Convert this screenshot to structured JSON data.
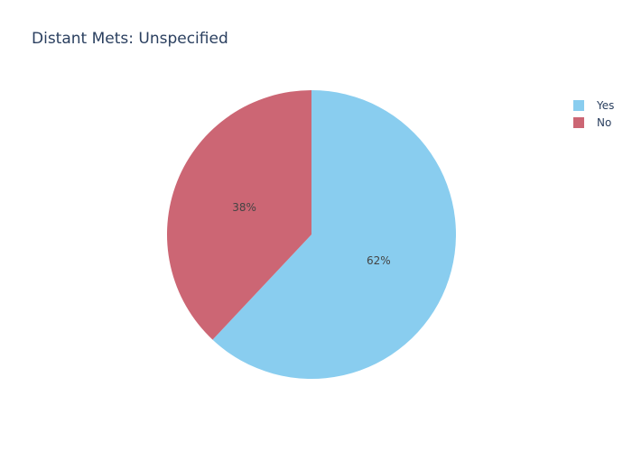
{
  "chart_data": {
    "type": "pie",
    "title": "Distant Mets: Unspecified",
    "slices": [
      {
        "label": "Yes",
        "value": 62,
        "text": "62%",
        "color": "#89cdef"
      },
      {
        "label": "No",
        "value": 38,
        "text": "38%",
        "color": "#cc6674"
      }
    ],
    "legend": {
      "position": "top-right",
      "items": [
        "Yes",
        "No"
      ]
    }
  }
}
